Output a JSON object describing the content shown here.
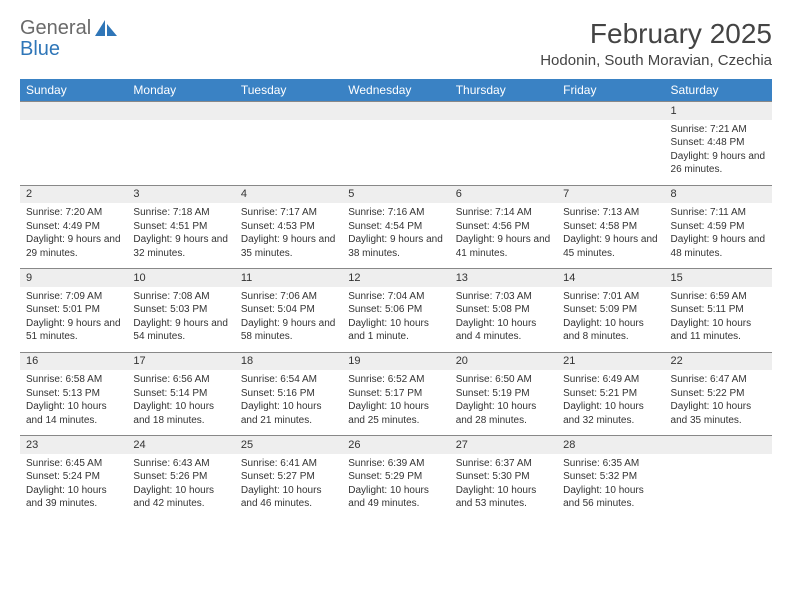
{
  "logo": {
    "line1": "General",
    "line2": "Blue"
  },
  "title": "February 2025",
  "location": "Hodonin, South Moravian, Czechia",
  "colors": {
    "header_bg": "#3a82c4",
    "header_text": "#ffffff",
    "num_row_bg": "#eeeeee",
    "border": "#888888",
    "logo_gray": "#6a6a6a",
    "logo_blue": "#2f76b8"
  },
  "weekdays": [
    "Sunday",
    "Monday",
    "Tuesday",
    "Wednesday",
    "Thursday",
    "Friday",
    "Saturday"
  ],
  "weeks": [
    [
      null,
      null,
      null,
      null,
      null,
      null,
      {
        "n": "1",
        "sr": "7:21 AM",
        "ss": "4:48 PM",
        "dl": "9 hours and 26 minutes."
      }
    ],
    [
      {
        "n": "2",
        "sr": "7:20 AM",
        "ss": "4:49 PM",
        "dl": "9 hours and 29 minutes."
      },
      {
        "n": "3",
        "sr": "7:18 AM",
        "ss": "4:51 PM",
        "dl": "9 hours and 32 minutes."
      },
      {
        "n": "4",
        "sr": "7:17 AM",
        "ss": "4:53 PM",
        "dl": "9 hours and 35 minutes."
      },
      {
        "n": "5",
        "sr": "7:16 AM",
        "ss": "4:54 PM",
        "dl": "9 hours and 38 minutes."
      },
      {
        "n": "6",
        "sr": "7:14 AM",
        "ss": "4:56 PM",
        "dl": "9 hours and 41 minutes."
      },
      {
        "n": "7",
        "sr": "7:13 AM",
        "ss": "4:58 PM",
        "dl": "9 hours and 45 minutes."
      },
      {
        "n": "8",
        "sr": "7:11 AM",
        "ss": "4:59 PM",
        "dl": "9 hours and 48 minutes."
      }
    ],
    [
      {
        "n": "9",
        "sr": "7:09 AM",
        "ss": "5:01 PM",
        "dl": "9 hours and 51 minutes."
      },
      {
        "n": "10",
        "sr": "7:08 AM",
        "ss": "5:03 PM",
        "dl": "9 hours and 54 minutes."
      },
      {
        "n": "11",
        "sr": "7:06 AM",
        "ss": "5:04 PM",
        "dl": "9 hours and 58 minutes."
      },
      {
        "n": "12",
        "sr": "7:04 AM",
        "ss": "5:06 PM",
        "dl": "10 hours and 1 minute."
      },
      {
        "n": "13",
        "sr": "7:03 AM",
        "ss": "5:08 PM",
        "dl": "10 hours and 4 minutes."
      },
      {
        "n": "14",
        "sr": "7:01 AM",
        "ss": "5:09 PM",
        "dl": "10 hours and 8 minutes."
      },
      {
        "n": "15",
        "sr": "6:59 AM",
        "ss": "5:11 PM",
        "dl": "10 hours and 11 minutes."
      }
    ],
    [
      {
        "n": "16",
        "sr": "6:58 AM",
        "ss": "5:13 PM",
        "dl": "10 hours and 14 minutes."
      },
      {
        "n": "17",
        "sr": "6:56 AM",
        "ss": "5:14 PM",
        "dl": "10 hours and 18 minutes."
      },
      {
        "n": "18",
        "sr": "6:54 AM",
        "ss": "5:16 PM",
        "dl": "10 hours and 21 minutes."
      },
      {
        "n": "19",
        "sr": "6:52 AM",
        "ss": "5:17 PM",
        "dl": "10 hours and 25 minutes."
      },
      {
        "n": "20",
        "sr": "6:50 AM",
        "ss": "5:19 PM",
        "dl": "10 hours and 28 minutes."
      },
      {
        "n": "21",
        "sr": "6:49 AM",
        "ss": "5:21 PM",
        "dl": "10 hours and 32 minutes."
      },
      {
        "n": "22",
        "sr": "6:47 AM",
        "ss": "5:22 PM",
        "dl": "10 hours and 35 minutes."
      }
    ],
    [
      {
        "n": "23",
        "sr": "6:45 AM",
        "ss": "5:24 PM",
        "dl": "10 hours and 39 minutes."
      },
      {
        "n": "24",
        "sr": "6:43 AM",
        "ss": "5:26 PM",
        "dl": "10 hours and 42 minutes."
      },
      {
        "n": "25",
        "sr": "6:41 AM",
        "ss": "5:27 PM",
        "dl": "10 hours and 46 minutes."
      },
      {
        "n": "26",
        "sr": "6:39 AM",
        "ss": "5:29 PM",
        "dl": "10 hours and 49 minutes."
      },
      {
        "n": "27",
        "sr": "6:37 AM",
        "ss": "5:30 PM",
        "dl": "10 hours and 53 minutes."
      },
      {
        "n": "28",
        "sr": "6:35 AM",
        "ss": "5:32 PM",
        "dl": "10 hours and 56 minutes."
      },
      null
    ]
  ],
  "labels": {
    "sunrise": "Sunrise: ",
    "sunset": "Sunset: ",
    "daylight": "Daylight: "
  }
}
